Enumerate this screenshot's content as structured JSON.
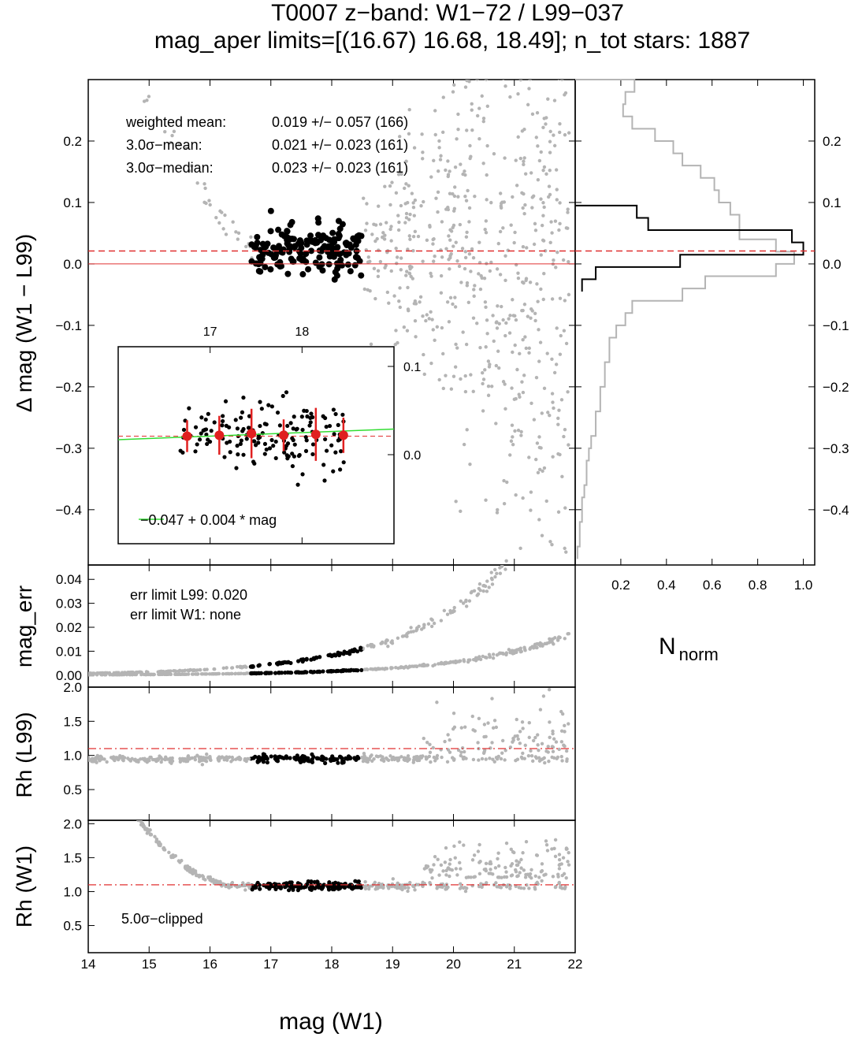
{
  "title": {
    "line1": "T0007 z−band: W1−72 / L99−037",
    "line2": "mag_aper limits=[(16.67) 16.68, 18.49]; n_tot stars: 1887"
  },
  "colors": {
    "accepted": "#000000",
    "rejected": "#b4b4b4",
    "reference_line": "#e03030",
    "fit_line": "#33dd33",
    "binned_points": "#e02020",
    "histogram_all": "#b4b4b4",
    "histogram_selected": "#000000"
  },
  "main_panel": {
    "ylabel": "Δ mag (W1 − L99)",
    "stats": {
      "weighted_mean_label": "weighted mean:",
      "weighted_mean_value": "0.019 +/− 0.057 (166)",
      "sigma_mean_label": "3.0σ−mean:",
      "sigma_mean_value": "0.021 +/− 0.023 (161)",
      "sigma_median_label": "3.0σ−median:",
      "sigma_median_value": "0.023 +/− 0.023 (161)"
    }
  },
  "inset": {
    "fit_label": "−0.047 + 0.004 * mag"
  },
  "err_panel": {
    "ylabel": "mag_err",
    "line1": "err limit L99: 0.020",
    "line2": "err limit W1:  none"
  },
  "rh_l99_panel": {
    "ylabel": "Rh (L99)"
  },
  "rh_w1_panel": {
    "ylabel": "Rh (W1)",
    "note": "5.0σ−clipped"
  },
  "hist_panel": {
    "xlabel_main": "N",
    "xlabel_sub": "norm"
  },
  "xlabel": "mag (W1)",
  "chart_data": [
    {
      "type": "scatter",
      "name": "delta-mag",
      "xlim": [
        14,
        22
      ],
      "ylim": [
        -0.49,
        0.3
      ],
      "x_ticks": [
        "14",
        "15",
        "16",
        "17",
        "18",
        "19",
        "20",
        "21",
        "22"
      ],
      "y_ticks": [
        "−0.4",
        "−0.3",
        "−0.2",
        "−0.1",
        "0.0",
        "0.1",
        "0.2"
      ],
      "y_tick_values": [
        -0.4,
        -0.3,
        -0.2,
        -0.1,
        0.0,
        0.1,
        0.2
      ],
      "reference_lines": [
        {
          "y": 0.021,
          "style": "dashed",
          "color": "red"
        },
        {
          "y": 0.0,
          "style": "solid",
          "color": "red"
        }
      ],
      "selected_range": [
        16.67,
        18.49
      ],
      "selected_center": 0.023,
      "selected_spread": 0.02,
      "n_selected": 166,
      "grey_trend": [
        [
          14.8,
          0.28
        ],
        [
          15.5,
          0.2
        ],
        [
          16.0,
          0.1
        ],
        [
          16.4,
          0.05
        ],
        [
          16.7,
          0.03
        ]
      ]
    },
    {
      "type": "scatter",
      "name": "inset",
      "x_ticks": [
        "17",
        "18"
      ],
      "y_ticks": [
        "0.1",
        "0.0"
      ],
      "binned": [
        {
          "x": 16.75,
          "y": 0.021,
          "err": 0.018
        },
        {
          "x": 17.1,
          "y": 0.022,
          "err": 0.022
        },
        {
          "x": 17.45,
          "y": 0.024,
          "err": 0.028
        },
        {
          "x": 17.8,
          "y": 0.022,
          "err": 0.018
        },
        {
          "x": 18.15,
          "y": 0.023,
          "err": 0.03
        },
        {
          "x": 18.45,
          "y": 0.022,
          "err": 0.02
        }
      ],
      "fit": {
        "intercept": -0.047,
        "slope": 0.004
      }
    },
    {
      "type": "line",
      "name": "histogram",
      "x_ticks": [
        "0.2",
        "0.4",
        "0.6",
        "0.8",
        "1.0"
      ],
      "xlim": [
        0,
        1.05
      ],
      "bins_all": [
        [
          0.29,
          0.26
        ],
        [
          0.27,
          0.22
        ],
        [
          0.25,
          0.21
        ],
        [
          0.23,
          0.25
        ],
        [
          0.21,
          0.35
        ],
        [
          0.19,
          0.43
        ],
        [
          0.17,
          0.47
        ],
        [
          0.15,
          0.55
        ],
        [
          0.13,
          0.61
        ],
        [
          0.11,
          0.63
        ],
        [
          0.09,
          0.68
        ],
        [
          0.07,
          0.72
        ],
        [
          0.05,
          0.72
        ],
        [
          0.03,
          0.88
        ],
        [
          0.01,
          0.96
        ],
        [
          -0.01,
          0.88
        ],
        [
          -0.03,
          0.57
        ],
        [
          -0.05,
          0.47
        ],
        [
          -0.07,
          0.25
        ],
        [
          -0.09,
          0.22
        ],
        [
          -0.11,
          0.18
        ],
        [
          -0.13,
          0.15
        ],
        [
          -0.15,
          0.15
        ],
        [
          -0.17,
          0.13
        ],
        [
          -0.19,
          0.13
        ],
        [
          -0.21,
          0.11
        ],
        [
          -0.23,
          0.11
        ],
        [
          -0.25,
          0.09
        ],
        [
          -0.27,
          0.09
        ],
        [
          -0.29,
          0.07
        ],
        [
          -0.31,
          0.06
        ],
        [
          -0.33,
          0.05
        ],
        [
          -0.35,
          0.05
        ],
        [
          -0.37,
          0.04
        ],
        [
          -0.39,
          0.03
        ],
        [
          -0.41,
          0.03
        ],
        [
          -0.43,
          0.02
        ],
        [
          -0.45,
          0.02
        ],
        [
          -0.47,
          0.01
        ]
      ],
      "bins_selected": [
        [
          0.085,
          0.27
        ],
        [
          0.065,
          0.32
        ],
        [
          0.045,
          0.95
        ],
        [
          0.025,
          1.0
        ],
        [
          0.005,
          0.46
        ],
        [
          -0.015,
          0.09
        ],
        [
          -0.035,
          0.03
        ]
      ]
    },
    {
      "type": "scatter",
      "name": "mag-err",
      "ylim": [
        -0.005,
        0.046
      ],
      "y_ticks": [
        "0.00",
        "0.01",
        "0.02",
        "0.03",
        "0.04"
      ],
      "y_tick_values": [
        0.0,
        0.01,
        0.02,
        0.03,
        0.04
      ],
      "upper_curve": {
        "a": 0.0045,
        "b": 0.6
      },
      "lower_curve": {
        "a": 0.0009,
        "b": 0.6
      }
    },
    {
      "type": "scatter",
      "name": "rh-l99",
      "ylim": [
        0.05,
        2.0
      ],
      "y_ticks": [
        "0.5",
        "1.0",
        "1.5",
        "2.0"
      ],
      "y_tick_values": [
        0.5,
        1.0,
        1.5,
        2.0
      ],
      "reference_line": 1.1,
      "stellar_locus": 0.95
    },
    {
      "type": "scatter",
      "name": "rh-w1",
      "ylim": [
        0.1,
        2.05
      ],
      "y_ticks": [
        "0.5",
        "1.0",
        "1.5",
        "2.0"
      ],
      "y_tick_values": [
        0.5,
        1.0,
        1.5,
        2.0
      ],
      "reference_line": 1.1,
      "stellar_locus": 1.08
    }
  ]
}
